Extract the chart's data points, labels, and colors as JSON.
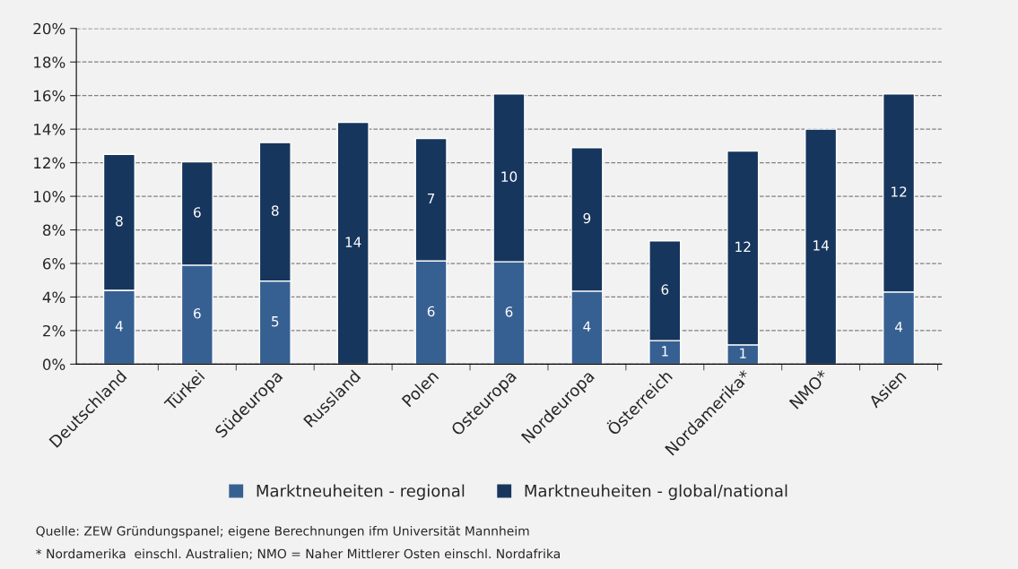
{
  "chart_data": {
    "type": "bar",
    "stacked": true,
    "categories": [
      "Deutschland",
      "Türkei",
      "Südeuropa",
      "Russland",
      "Polen",
      "Osteuropa",
      "Nordeuropa",
      "Österreich",
      "Nordamerika*",
      "NMO*",
      "Asien"
    ],
    "series": [
      {
        "name": "Marktneuheiten - regional",
        "color": "#376092",
        "values": [
          4.4,
          5.9,
          4.95,
          0,
          6.15,
          6.1,
          4.35,
          1.4,
          1.15,
          0,
          4.3
        ],
        "value_labels": [
          "4",
          "6",
          "5",
          null,
          "6",
          "6",
          "4",
          "1",
          "1",
          null,
          "4"
        ]
      },
      {
        "name": "Marktneuheiten - global/national",
        "color": "#17365d",
        "values": [
          8.1,
          6.15,
          8.25,
          14.4,
          7.3,
          10.0,
          8.55,
          5.95,
          11.55,
          14.0,
          11.8
        ],
        "value_labels": [
          "8",
          "6",
          "8",
          "14",
          "7",
          "10",
          "9",
          "6",
          "12",
          "14",
          "12"
        ]
      }
    ],
    "ylim": [
      0,
      20
    ],
    "yticks": [
      {
        "value": 0,
        "label": "0%"
      },
      {
        "value": 2,
        "label": "2%"
      },
      {
        "value": 4,
        "label": "4%"
      },
      {
        "value": 6,
        "label": "6%"
      },
      {
        "value": 8,
        "label": "8%"
      },
      {
        "value": 10,
        "label": "10%"
      },
      {
        "value": 12,
        "label": "12%"
      },
      {
        "value": 14,
        "label": "14%"
      },
      {
        "value": 16,
        "label": "16%"
      },
      {
        "value": 18,
        "label": "18%"
      },
      {
        "value": 20,
        "label": "20%"
      }
    ],
    "grid": "y",
    "legend": "bottom",
    "annotations": [
      "Quelle: ZEW Gründungspanel; eigene Berechnungen ifm Universität Mannheim",
      "* Nordamerika  einschl. Australien; NMO = Naher Mittlerer Osten einschl. Nordafrika"
    ]
  }
}
